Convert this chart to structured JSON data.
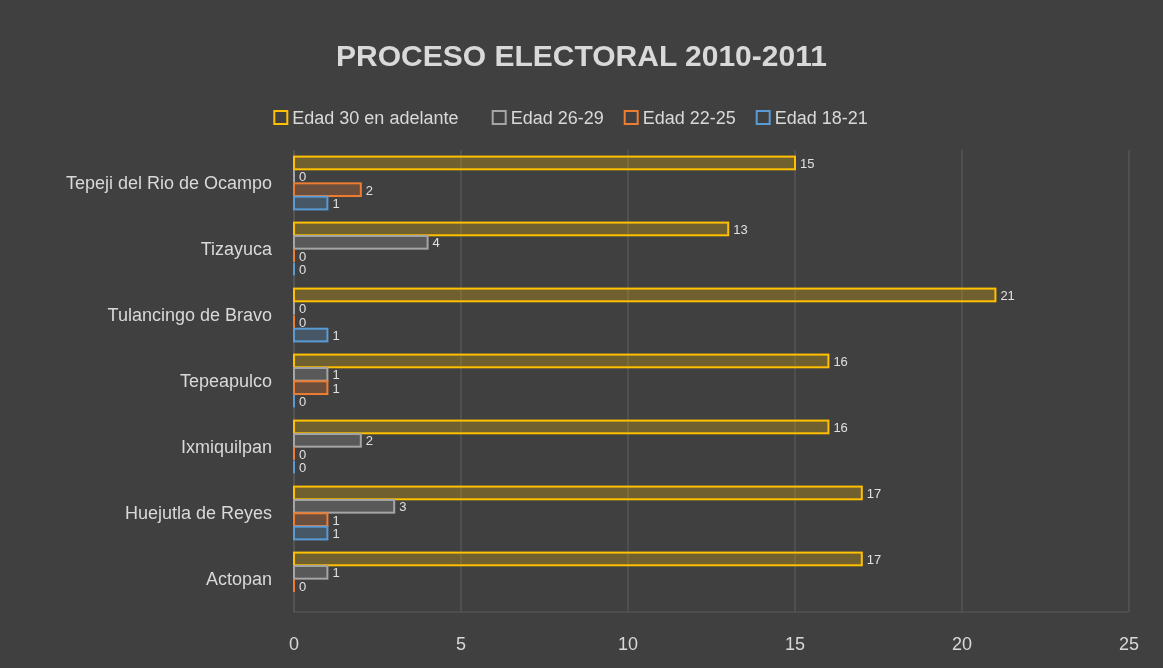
{
  "chart_data": {
    "type": "bar",
    "orientation": "horizontal",
    "title": "PROCESO ELECTORAL 2010-2011",
    "categories": [
      "Tepeji del Rio de Ocampo",
      "Tizayuca",
      "Tulancingo de Bravo",
      "Tepeapulco",
      "Ixmiquilpan",
      "Huejutla de Reyes",
      "Actopan"
    ],
    "series": [
      {
        "name": "Edad 30 en adelante",
        "color": "#ffc000",
        "values": [
          15,
          13,
          21,
          16,
          16,
          17,
          17
        ]
      },
      {
        "name": "Edad 26-29",
        "color": "#a5a5a5",
        "values": [
          0,
          4,
          0,
          1,
          2,
          3,
          1
        ]
      },
      {
        "name": "Edad 22-25",
        "color": "#ed7d31",
        "values": [
          2,
          0,
          0,
          1,
          0,
          1,
          0
        ]
      },
      {
        "name": "Edad 18-21",
        "color": "#5b9bd5",
        "values": [
          1,
          0,
          1,
          0,
          0,
          1,
          null
        ]
      }
    ],
    "xlim": [
      0,
      25
    ],
    "xticks": [
      0,
      5,
      10,
      15,
      20,
      25
    ],
    "grid": "x",
    "legend": "top",
    "data_labels": true
  }
}
